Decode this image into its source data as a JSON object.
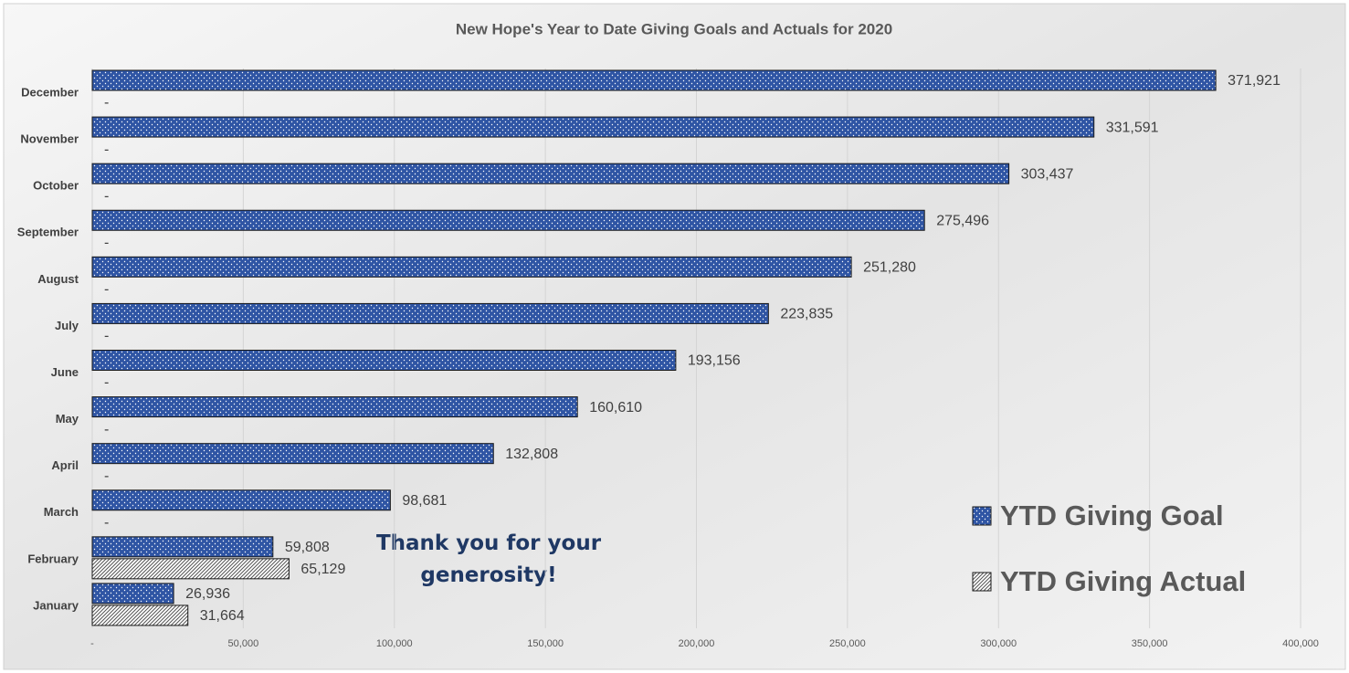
{
  "chart_data": {
    "type": "barh",
    "title": "New Hope's Year to Date Giving Goals and Actuals for 2020",
    "annotation": "Thank you for your generosity!",
    "categories": [
      "January",
      "February",
      "March",
      "April",
      "May",
      "June",
      "July",
      "August",
      "September",
      "October",
      "November",
      "December"
    ],
    "series": [
      {
        "name": "YTD Giving Goal",
        "color": "#2f55a4",
        "pattern": "dots",
        "values": [
          26936,
          59808,
          98681,
          132808,
          160610,
          193156,
          223835,
          251280,
          275496,
          303437,
          331591,
          371921
        ],
        "value_labels": [
          "26,936",
          "59,808",
          "98,681",
          "132,808",
          "160,610",
          "193,156",
          "223,835",
          "251,280",
          "275,496",
          "303,437",
          "331,591",
          "371,921"
        ]
      },
      {
        "name": "YTD Giving Actual",
        "color": "#555555",
        "pattern": "hatch",
        "values": [
          31664,
          65129,
          0,
          0,
          0,
          0,
          0,
          0,
          0,
          0,
          0,
          0
        ],
        "value_labels": [
          "31,664",
          "65,129",
          "-",
          "-",
          "-",
          "-",
          "-",
          "-",
          "-",
          "-",
          "-",
          "-"
        ]
      }
    ],
    "xlim": [
      0,
      400000
    ],
    "xticks": [
      {
        "value": 0,
        "label": "-"
      },
      {
        "value": 50000,
        "label": "50,000"
      },
      {
        "value": 100000,
        "label": "100,000"
      },
      {
        "value": 150000,
        "label": "150,000"
      },
      {
        "value": 200000,
        "label": "200,000"
      },
      {
        "value": 250000,
        "label": "250,000"
      },
      {
        "value": 300000,
        "label": "300,000"
      },
      {
        "value": 350000,
        "label": "350,000"
      },
      {
        "value": 400000,
        "label": "400,000"
      }
    ],
    "grid": true,
    "legend": "right"
  }
}
